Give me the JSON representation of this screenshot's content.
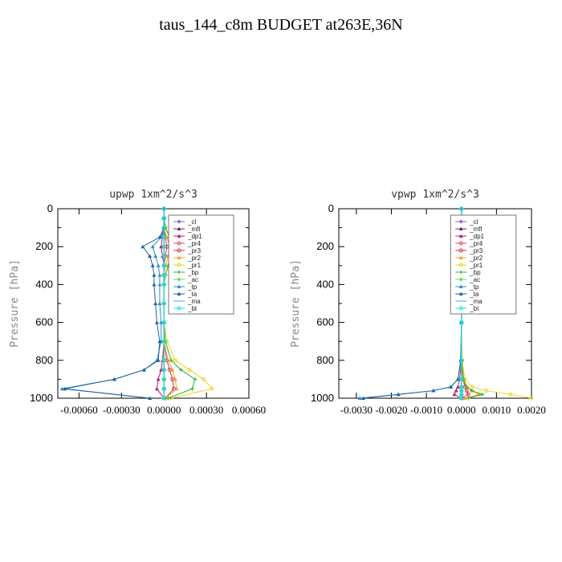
{
  "title": "taus_144_c8m  BUDGET at263E,36N",
  "chart_data": [
    {
      "type": "line",
      "title": "upwp   1xm^2/s^3",
      "ylabel": "Pressure [hPa]",
      "xlim": [
        -0.00075,
        0.0006
      ],
      "ylim": [
        1000,
        0
      ],
      "x_ticks": [
        "-0.00060",
        "-0.00030",
        "0.00000",
        "0.00030",
        "0.00060"
      ],
      "x_tick_values": [
        -0.0006,
        -0.0003,
        0.0,
        0.0003,
        0.0006
      ],
      "y_ticks": [
        "0",
        "200",
        "400",
        "600",
        "800",
        "1000"
      ],
      "y_tick_values": [
        0,
        200,
        400,
        600,
        800,
        1000
      ],
      "legend_position": "top-right",
      "series": [
        {
          "name": "_cl",
          "color": "#8b5fc0",
          "x": [
            0,
            0,
            0,
            0,
            0,
            0,
            0,
            0,
            0,
            0,
            0,
            0,
            0,
            0,
            0,
            0,
            0
          ],
          "y": [
            0,
            50,
            100,
            150,
            200,
            250,
            300,
            350,
            400,
            500,
            600,
            700,
            800,
            850,
            900,
            950,
            1000
          ]
        },
        {
          "name": "_mfl",
          "color": "#7a1f7a",
          "x": [
            0,
            0,
            0,
            0,
            0,
            0,
            0,
            0,
            0,
            0,
            0,
            0,
            0,
            0,
            0,
            0,
            0
          ],
          "y": [
            0,
            50,
            100,
            150,
            200,
            250,
            300,
            350,
            400,
            500,
            600,
            700,
            800,
            850,
            900,
            950,
            1000
          ]
        },
        {
          "name": "_dp1",
          "color": "#b0206a",
          "x": [
            0,
            0,
            0,
            -1e-05,
            -2e-05,
            -1e-05,
            0,
            0,
            0,
            0,
            0,
            0,
            -1e-05,
            -2e-05,
            -4e-05,
            -5e-05,
            0
          ],
          "y": [
            0,
            50,
            100,
            150,
            200,
            250,
            300,
            350,
            400,
            500,
            600,
            700,
            800,
            850,
            900,
            950,
            1000
          ]
        },
        {
          "name": "_pr4",
          "color": "#e04a6a",
          "x": [
            0,
            0,
            0,
            0,
            0,
            0,
            0,
            0,
            0,
            0,
            0,
            0,
            0,
            0,
            0,
            0,
            0
          ],
          "y": [
            0,
            50,
            100,
            150,
            200,
            250,
            300,
            350,
            400,
            500,
            600,
            700,
            800,
            850,
            900,
            950,
            1000
          ]
        },
        {
          "name": "_pr3",
          "color": "#e0304a",
          "x": [
            0,
            0,
            0,
            1e-05,
            2e-05,
            1e-05,
            0,
            0,
            0,
            0,
            0,
            0,
            2e-05,
            4e-05,
            6e-05,
            7e-05,
            1e-05
          ],
          "y": [
            0,
            50,
            100,
            150,
            200,
            250,
            300,
            350,
            400,
            500,
            600,
            700,
            800,
            850,
            900,
            950,
            1000
          ]
        },
        {
          "name": "_pr2",
          "color": "#f0a030",
          "x": [
            0,
            0,
            0,
            2e-05,
            4e-05,
            3e-05,
            1e-05,
            0,
            0,
            0,
            0,
            0,
            3e-05,
            6e-05,
            8e-05,
            9e-05,
            1e-05
          ],
          "y": [
            0,
            50,
            100,
            150,
            200,
            250,
            300,
            350,
            400,
            500,
            600,
            700,
            800,
            850,
            900,
            950,
            1000
          ]
        },
        {
          "name": "_pr1",
          "color": "#e8d820",
          "x": [
            0,
            0,
            1e-05,
            5e-05,
            8e-05,
            6e-05,
            3e-05,
            1e-05,
            0,
            0,
            0,
            2e-05,
            8e-05,
            0.00018,
            0.00028,
            0.00034,
            5e-05
          ],
          "y": [
            0,
            50,
            100,
            150,
            200,
            250,
            300,
            350,
            400,
            500,
            600,
            700,
            800,
            850,
            900,
            950,
            1000
          ]
        },
        {
          "name": "_bp",
          "color": "#30b030",
          "x": [
            0,
            0,
            1e-05,
            4e-05,
            0.00012,
            7e-05,
            3e-05,
            1e-05,
            0,
            0,
            0,
            1e-05,
            5e-05,
            0.00012,
            0.00022,
            0.0002,
            3e-05
          ],
          "y": [
            0,
            50,
            100,
            150,
            200,
            250,
            300,
            350,
            400,
            500,
            600,
            700,
            800,
            850,
            900,
            950,
            1000
          ]
        },
        {
          "name": "_ac",
          "color": "#60e060",
          "x": [
            0,
            0,
            0,
            0,
            0,
            0,
            0,
            0,
            0,
            0,
            0,
            0,
            0,
            0,
            0,
            0,
            0
          ],
          "y": [
            0,
            50,
            100,
            150,
            200,
            250,
            300,
            350,
            400,
            500,
            600,
            700,
            800,
            850,
            900,
            950,
            1000
          ]
        },
        {
          "name": "_tp",
          "color": "#3090c0",
          "x": [
            0,
            0,
            0,
            -2e-05,
            -8e-05,
            -6e-05,
            -4e-05,
            -3e-05,
            -3e-05,
            -3e-05,
            -2e-05,
            -2e-05,
            -5e-05,
            -0.00014,
            -0.00035,
            -0.00072,
            -0.0001
          ],
          "y": [
            0,
            50,
            100,
            150,
            200,
            250,
            300,
            350,
            400,
            500,
            600,
            700,
            800,
            850,
            900,
            950,
            1000
          ]
        },
        {
          "name": "_ta",
          "color": "#2060a0",
          "x": [
            0,
            0,
            0,
            -3e-05,
            -0.00015,
            -0.0001,
            -8e-05,
            -7e-05,
            -7e-05,
            -6e-05,
            -5e-05,
            -3e-05,
            -4e-05,
            -0.00014,
            -0.00035,
            -0.0007,
            -0.0001
          ],
          "y": [
            0,
            50,
            100,
            150,
            200,
            250,
            300,
            350,
            400,
            500,
            600,
            700,
            800,
            850,
            900,
            950,
            1000
          ]
        },
        {
          "name": "_ma",
          "color": "#40b0e0",
          "x": [
            0,
            0,
            0,
            0,
            0,
            0,
            0,
            0,
            0,
            0,
            0,
            0,
            0,
            0,
            0,
            0,
            0
          ],
          "y": [
            0,
            50,
            100,
            150,
            200,
            250,
            300,
            350,
            400,
            500,
            600,
            700,
            800,
            850,
            900,
            950,
            1000
          ]
        },
        {
          "name": "_bt",
          "color": "#20e0e0",
          "x": [
            0,
            0,
            0,
            0,
            0,
            0,
            0,
            0,
            0,
            0,
            0,
            0,
            0,
            0,
            0,
            0,
            0
          ],
          "y": [
            0,
            50,
            100,
            150,
            200,
            250,
            300,
            350,
            400,
            500,
            600,
            700,
            800,
            850,
            900,
            950,
            1000
          ]
        }
      ]
    },
    {
      "type": "line",
      "title": "vpwp   1xm^2/s^3",
      "ylabel": "Pressure [hPa]",
      "xlim": [
        -0.0035,
        0.002
      ],
      "ylim": [
        1000,
        0
      ],
      "x_ticks": [
        "-0.0030",
        "-0.0020",
        "-0.0010",
        "0.0000",
        "0.0010",
        "0.0020"
      ],
      "x_tick_values": [
        -0.003,
        -0.002,
        -0.001,
        0.0,
        0.001,
        0.002
      ],
      "y_ticks": [
        "0",
        "200",
        "400",
        "600",
        "800",
        "1000"
      ],
      "y_tick_values": [
        0,
        200,
        400,
        600,
        800,
        1000
      ],
      "legend_position": "top-right",
      "series": [
        {
          "name": "_cl",
          "color": "#8b5fc0",
          "x": [
            0,
            0,
            0,
            0,
            0,
            0,
            0,
            0,
            0,
            0,
            0,
            0
          ],
          "y": [
            0,
            100,
            200,
            300,
            400,
            600,
            800,
            900,
            940,
            960,
            980,
            1000
          ]
        },
        {
          "name": "_mfl",
          "color": "#7a1f7a",
          "x": [
            0,
            0,
            0,
            0,
            0,
            0,
            0,
            0,
            0,
            0,
            0,
            0
          ],
          "y": [
            0,
            100,
            200,
            300,
            400,
            600,
            800,
            900,
            940,
            960,
            980,
            1000
          ]
        },
        {
          "name": "_dp1",
          "color": "#b0206a",
          "x": [
            0,
            0,
            0,
            0,
            0,
            0,
            0,
            -5e-05,
            -0.0001,
            -0.00015,
            -0.0002,
            0
          ],
          "y": [
            0,
            100,
            200,
            300,
            400,
            600,
            800,
            900,
            940,
            960,
            980,
            1000
          ]
        },
        {
          "name": "_pr4",
          "color": "#e04a6a",
          "x": [
            0,
            0,
            0,
            0,
            0,
            0,
            0,
            0,
            0,
            0,
            0,
            0
          ],
          "y": [
            0,
            100,
            200,
            300,
            400,
            600,
            800,
            900,
            940,
            960,
            980,
            1000
          ]
        },
        {
          "name": "_pr3",
          "color": "#e0304a",
          "x": [
            0,
            0,
            0,
            0,
            0,
            0,
            0,
            5e-05,
            0.0001,
            0.00015,
            0.0002,
            3e-05
          ],
          "y": [
            0,
            100,
            200,
            300,
            400,
            600,
            800,
            900,
            940,
            960,
            980,
            1000
          ]
        },
        {
          "name": "_pr2",
          "color": "#f0a030",
          "x": [
            0,
            0,
            0,
            0,
            0,
            0,
            0,
            8e-05,
            0.00015,
            0.0003,
            0.0005,
            0.0001
          ],
          "y": [
            0,
            100,
            200,
            300,
            400,
            600,
            800,
            900,
            940,
            960,
            980,
            1000
          ]
        },
        {
          "name": "_pr1",
          "color": "#e8d820",
          "x": [
            0,
            0,
            0,
            0,
            0,
            0,
            2e-05,
            0.0001,
            0.0003,
            0.0007,
            0.0014,
            0.002
          ],
          "y": [
            0,
            100,
            200,
            300,
            400,
            600,
            800,
            900,
            940,
            960,
            980,
            1000
          ]
        },
        {
          "name": "_bp",
          "color": "#30b030",
          "x": [
            0,
            0,
            0,
            0,
            0,
            0,
            1e-05,
            5e-05,
            0.00015,
            0.0003,
            0.0006,
            0.0002
          ],
          "y": [
            0,
            100,
            200,
            300,
            400,
            600,
            800,
            900,
            940,
            960,
            980,
            1000
          ]
        },
        {
          "name": "_ac",
          "color": "#60e060",
          "x": [
            0,
            0,
            0,
            0,
            0,
            0,
            0,
            0,
            0,
            0,
            0,
            0
          ],
          "y": [
            0,
            100,
            200,
            300,
            400,
            600,
            800,
            900,
            940,
            960,
            980,
            1000
          ]
        },
        {
          "name": "_tp",
          "color": "#3090c0",
          "x": [
            0,
            0,
            0,
            0,
            0,
            0,
            -2e-05,
            -0.0001,
            -0.0003,
            -0.0008,
            -0.0018,
            -0.0029
          ],
          "y": [
            0,
            100,
            200,
            300,
            400,
            600,
            800,
            900,
            940,
            960,
            980,
            1000
          ]
        },
        {
          "name": "_ta",
          "color": "#2060a0",
          "x": [
            0,
            0,
            0,
            0,
            0,
            0,
            -2e-05,
            -0.0001,
            -0.0003,
            -0.0008,
            -0.0018,
            -0.0028
          ],
          "y": [
            0,
            100,
            200,
            300,
            400,
            600,
            800,
            900,
            940,
            960,
            980,
            1000
          ]
        },
        {
          "name": "_ma",
          "color": "#40b0e0",
          "x": [
            0,
            0,
            0,
            0,
            0,
            0,
            0,
            0,
            0,
            0,
            0,
            0
          ],
          "y": [
            0,
            100,
            200,
            300,
            400,
            600,
            800,
            900,
            940,
            960,
            980,
            1000
          ]
        },
        {
          "name": "_bt",
          "color": "#20e0e0",
          "x": [
            0,
            0,
            0,
            0,
            0,
            0,
            0,
            0,
            0,
            0,
            0,
            0
          ],
          "y": [
            0,
            100,
            200,
            300,
            400,
            600,
            800,
            900,
            940,
            960,
            980,
            1000
          ]
        }
      ]
    }
  ]
}
